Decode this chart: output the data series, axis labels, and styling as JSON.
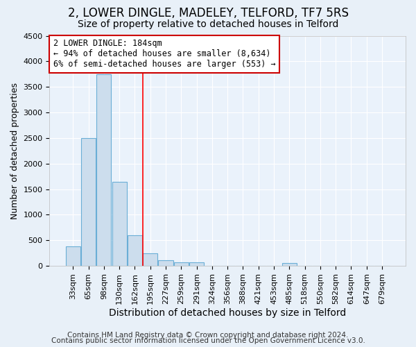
{
  "title1": "2, LOWER DINGLE, MADELEY, TELFORD, TF7 5RS",
  "title2": "Size of property relative to detached houses in Telford",
  "xlabel": "Distribution of detached houses by size in Telford",
  "ylabel": "Number of detached properties",
  "categories": [
    "33sqm",
    "65sqm",
    "98sqm",
    "130sqm",
    "162sqm",
    "195sqm",
    "227sqm",
    "259sqm",
    "291sqm",
    "324sqm",
    "356sqm",
    "388sqm",
    "421sqm",
    "453sqm",
    "485sqm",
    "518sqm",
    "550sqm",
    "582sqm",
    "614sqm",
    "647sqm",
    "679sqm"
  ],
  "values": [
    380,
    2500,
    3750,
    1640,
    600,
    240,
    110,
    65,
    65,
    0,
    0,
    0,
    0,
    0,
    60,
    0,
    0,
    0,
    0,
    0,
    0
  ],
  "bar_color": "#ccdded",
  "bar_edge_color": "#6aaed6",
  "red_line_index": 4.5,
  "annotation_text": "2 LOWER DINGLE: 184sqm\n← 94% of detached houses are smaller (8,634)\n6% of semi-detached houses are larger (553) →",
  "annotation_box_color": "#ffffff",
  "annotation_box_edge_color": "#cc0000",
  "ylim": [
    0,
    4500
  ],
  "footer1": "Contains HM Land Registry data © Crown copyright and database right 2024.",
  "footer2": "Contains public sector information licensed under the Open Government Licence v3.0.",
  "bg_color": "#e8f0f8",
  "plot_bg_color": "#eaf2fb",
  "grid_color": "#ffffff",
  "title1_fontsize": 12,
  "title2_fontsize": 10,
  "xlabel_fontsize": 10,
  "ylabel_fontsize": 9,
  "tick_fontsize": 8,
  "annotation_fontsize": 8.5,
  "footer_fontsize": 7.5
}
